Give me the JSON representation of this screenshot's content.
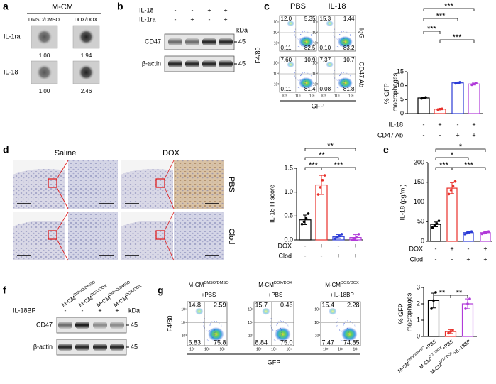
{
  "panels": {
    "a": {
      "label": "a",
      "title": "M-CM",
      "conditions": [
        "DMSO/DMSO",
        "DOX/DOX"
      ],
      "rows": [
        {
          "name": "IL-1ra",
          "values": [
            "1.00",
            "1.94"
          ]
        },
        {
          "name": "IL-18",
          "values": [
            "1.00",
            "2.46"
          ]
        }
      ]
    },
    "b": {
      "label": "b",
      "treatments": [
        {
          "name": "IL-18",
          "signs": [
            "-",
            "-",
            "+",
            "+"
          ]
        },
        {
          "name": "IL-1ra",
          "signs": [
            "-",
            "+",
            "-",
            "+"
          ]
        }
      ],
      "unit": "kDa",
      "blots": [
        {
          "name": "CD47",
          "size": "45"
        },
        {
          "name": "β-actin",
          "size": "45"
        }
      ]
    },
    "c": {
      "label": "c",
      "columns": [
        "PBS",
        "IL-18"
      ],
      "rows": [
        "IgG",
        "CD47 Ab"
      ],
      "y_label": "F4/80",
      "x_label": "GFP",
      "yticks": [
        "10³",
        "10⁴",
        "10⁵"
      ],
      "xticks": [
        "10³",
        "10⁵",
        "10⁶"
      ],
      "quadrants": [
        [
          "12.0",
          "5.35",
          "0.11",
          "82.5"
        ],
        [
          "15.3",
          "1.44",
          "0.10",
          "83.2"
        ],
        [
          "7.60",
          "10.9",
          "0.11",
          "81.4"
        ],
        [
          "7.37",
          "10.7",
          "0.08",
          "81.8"
        ]
      ]
    },
    "d": {
      "label": "d",
      "columns": [
        "Saline",
        "DOX"
      ],
      "rows": [
        "PBS",
        "Clod"
      ]
    },
    "e": {
      "label": "e"
    },
    "f": {
      "label": "f",
      "lanes": [
        {
          "base": "M-CM",
          "sup": "DMSO/DMSO"
        },
        {
          "base": "M-CM",
          "sup": "DOX/DOX"
        },
        {
          "base": "M-CM",
          "sup": "DMSO/DMSO"
        },
        {
          "base": "M-CM",
          "sup": "DOX/DOX"
        }
      ],
      "treatments": [
        {
          "name": "IL-18BP",
          "signs": [
            "-",
            "-",
            "+",
            "+"
          ]
        }
      ],
      "unit": "kDa",
      "blots": [
        {
          "name": "CD47",
          "size": "45"
        },
        {
          "name": "β-actin",
          "size": "45"
        }
      ]
    },
    "g": {
      "label": "g",
      "y_label": "F4/80",
      "x_label": "GFP",
      "yticks": [
        "10³",
        "10⁴",
        "10⁵"
      ],
      "xticks": [
        "10³",
        "10⁵",
        "10⁶"
      ],
      "plots": [
        {
          "base": "M-CM",
          "sup": "DMSO/DMSO",
          "suffix": "+PBS",
          "quadrants": [
            "14.8",
            "2.59",
            "6.83",
            "75.8"
          ]
        },
        {
          "base": "M-CM",
          "sup": "DOX/DOX",
          "suffix": "+PBS",
          "quadrants": [
            "15.7",
            "0.46",
            "8.84",
            "75.0"
          ]
        },
        {
          "base": "M-CM",
          "sup": "DOX/DOX",
          "suffix": "+IL-18BP",
          "quadrants": [
            "15.4",
            "2.28",
            "7.47",
            "74.85"
          ]
        }
      ]
    }
  },
  "chart_data": [
    {
      "type": "bar",
      "y_label": {
        "base": "% GFP",
        "sup": "+",
        "line2": "macrophages"
      },
      "factors": [
        {
          "name": "IL-18",
          "levels": [
            "-",
            "+",
            "-",
            "+"
          ]
        },
        {
          "name": "CD47 Ab",
          "levels": [
            "-",
            "-",
            "+",
            "+"
          ]
        }
      ],
      "values": [
        5.6,
        1.6,
        11.0,
        10.6
      ],
      "errors": [
        0.25,
        0.15,
        0.25,
        0.35
      ],
      "points": [
        [
          5.4,
          5.6,
          5.8
        ],
        [
          1.45,
          1.6,
          1.7
        ],
        [
          10.8,
          11.0,
          11.2
        ],
        [
          10.3,
          10.6,
          10.9
        ]
      ],
      "colors": [
        "#000000",
        "#e8302a",
        "#2b3bd6",
        "#b13bd9"
      ],
      "ylim": [
        0,
        15
      ],
      "yticks": [
        0,
        5,
        10,
        15
      ],
      "significance": [
        "***",
        "***",
        "***",
        "***"
      ]
    },
    {
      "type": "bar",
      "y_label": "IL-18 H score",
      "factors": [
        {
          "name": "DOX",
          "levels": [
            "-",
            "+",
            "-",
            "+"
          ]
        },
        {
          "name": "Clod",
          "levels": [
            "-",
            "-",
            "+",
            "+"
          ]
        }
      ],
      "values": [
        0.42,
        1.15,
        0.07,
        0.05
      ],
      "errors": [
        0.1,
        0.2,
        0.04,
        0.06
      ],
      "points": [
        [
          0.33,
          0.38,
          0.45,
          0.55
        ],
        [
          0.95,
          1.1,
          1.25,
          1.35
        ],
        [
          0.03,
          0.05,
          0.08,
          0.12
        ],
        [
          0.0,
          0.02,
          0.05,
          0.12
        ]
      ],
      "colors": [
        "#000000",
        "#e8302a",
        "#2b3bd6",
        "#b13bd9"
      ],
      "ylim": [
        0,
        1.5
      ],
      "yticks": [
        {
          "value": 0,
          "label": "0.0"
        },
        0.5,
        {
          "value": 1,
          "label": "1.0"
        },
        1.5
      ],
      "significance": [
        "**",
        "**",
        "***",
        "***"
      ]
    },
    {
      "type": "bar",
      "y_label": "IL-18 (pg/ml)",
      "factors": [
        {
          "name": "DOX",
          "levels": [
            "-",
            "+",
            "-",
            "+"
          ]
        },
        {
          "name": "Clod",
          "levels": [
            "-",
            "-",
            "+",
            "+"
          ]
        }
      ],
      "values": [
        43,
        135,
        22,
        22
      ],
      "errors": [
        6,
        14,
        3,
        3
      ],
      "points": [
        [
          35,
          40,
          45,
          52
        ],
        [
          120,
          130,
          140,
          152
        ],
        [
          18,
          21,
          23,
          25
        ],
        [
          19,
          21,
          22,
          25
        ]
      ],
      "colors": [
        "#000000",
        "#e8302a",
        "#2b3bd6",
        "#b13bd9"
      ],
      "ylim": [
        0,
        200
      ],
      "yticks": [
        0,
        50,
        100,
        150,
        200
      ],
      "significance": [
        "*",
        "*",
        "***",
        "***"
      ]
    },
    {
      "type": "bar",
      "y_label": {
        "base": "% GFP",
        "sup": "+",
        "line2": "macrophages"
      },
      "categories": [
        {
          "base": "M-CM",
          "sup": "DMSO/DMSO",
          "suffix": "+PBS"
        },
        {
          "base": "M-CM",
          "sup": "DOX/DOX",
          "suffix": "+PBS"
        },
        {
          "base": "M-CM",
          "sup": "DOX/DOX",
          "suffix": "+IL-18BP"
        }
      ],
      "values": [
        2.2,
        0.3,
        2.0
      ],
      "errors": [
        0.45,
        0.12,
        0.3
      ],
      "points": [
        [
          1.7,
          2.2,
          2.7
        ],
        [
          0.2,
          0.3,
          0.4
        ],
        [
          1.7,
          2.0,
          2.3
        ]
      ],
      "colors": [
        "#000000",
        "#e8302a",
        "#b13bd9"
      ],
      "ylim": [
        0,
        3
      ],
      "yticks": [
        0,
        1,
        2,
        3
      ],
      "significance": [
        "**",
        "**"
      ]
    }
  ]
}
